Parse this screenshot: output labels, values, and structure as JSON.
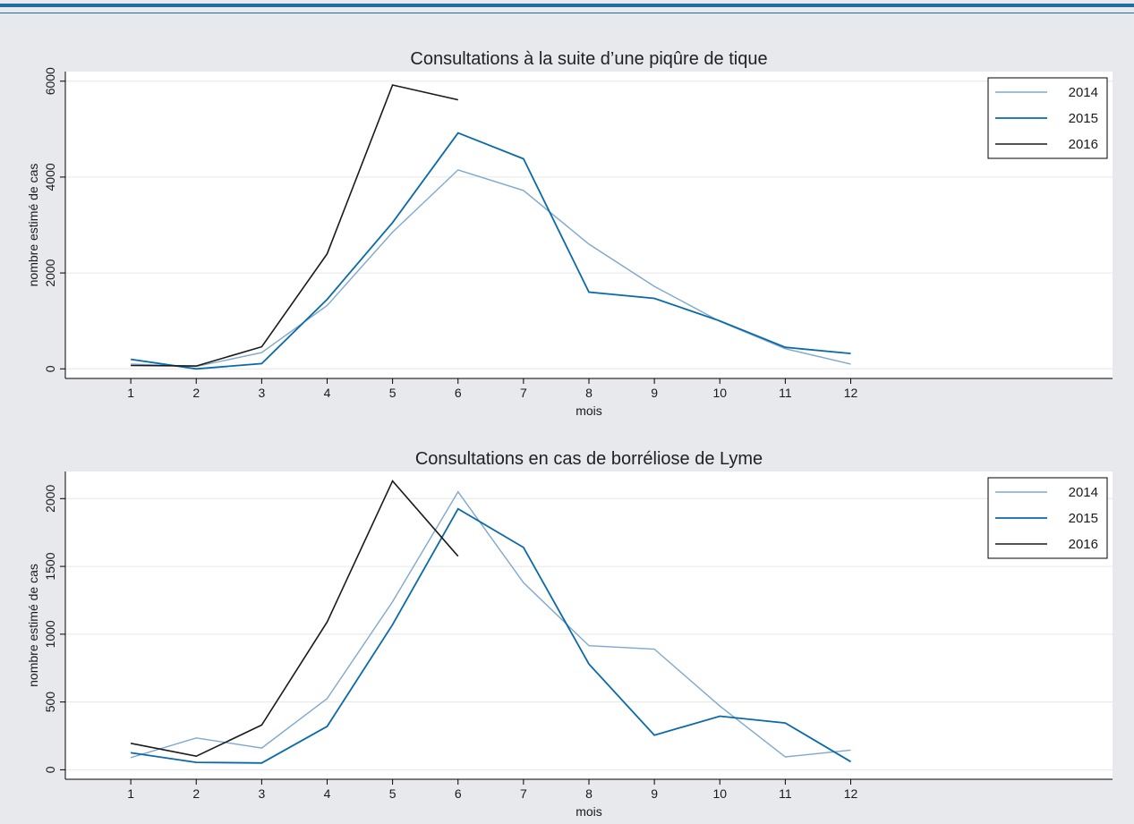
{
  "colors": {
    "s2014": "#7fa8cf",
    "s2015": "#0a6aa8",
    "s2016": "#1a1a1a",
    "grid": "#e6e6e6",
    "background": "#e8e9ec",
    "plot_bg": "#ffffff",
    "accent": "#1f6fa5"
  },
  "chart_data": [
    {
      "type": "line",
      "title": "Consultations à la suite d’une piqûre de tique",
      "xlabel": "mois",
      "ylabel": "nombre estimé de cas",
      "x_ticks": [
        "1",
        "2",
        "3",
        "4",
        "5",
        "6",
        "7",
        "8",
        "9",
        "10",
        "11",
        "12"
      ],
      "xlim": [
        0,
        16
      ],
      "ylim": [
        -200,
        6200
      ],
      "y_ticks": [
        0,
        2000,
        4000,
        6000
      ],
      "grid": true,
      "legend_position": "top-right",
      "series": [
        {
          "name": "2014",
          "x": [
            1,
            2,
            3,
            4,
            5,
            6,
            7,
            8,
            9,
            10,
            11,
            12
          ],
          "values": [
            100,
            50,
            340,
            1320,
            2850,
            4150,
            3720,
            2600,
            1720,
            990,
            420,
            100
          ]
        },
        {
          "name": "2015",
          "x": [
            1,
            2,
            3,
            4,
            5,
            6,
            7,
            8,
            9,
            10,
            11,
            12
          ],
          "values": [
            200,
            0,
            110,
            1450,
            3050,
            4920,
            4380,
            1600,
            1470,
            1000,
            450,
            320
          ]
        },
        {
          "name": "2016",
          "x": [
            1,
            2,
            3,
            4,
            5,
            6
          ],
          "values": [
            70,
            60,
            460,
            2400,
            5920,
            5610
          ]
        }
      ]
    },
    {
      "type": "line",
      "title": "Consultations en cas de borréliose de Lyme",
      "xlabel": "mois",
      "ylabel": "nombre estimé de cas",
      "x_ticks": [
        "1",
        "2",
        "3",
        "4",
        "5",
        "6",
        "7",
        "8",
        "9",
        "10",
        "11",
        "12"
      ],
      "xlim": [
        0,
        16
      ],
      "ylim": [
        -70,
        2200
      ],
      "y_ticks": [
        0,
        500,
        1000,
        1500,
        2000
      ],
      "grid": true,
      "legend_position": "top-right",
      "series": [
        {
          "name": "2014",
          "x": [
            1,
            2,
            3,
            4,
            5,
            6,
            7,
            8,
            9,
            10,
            11,
            12
          ],
          "values": [
            90,
            235,
            160,
            525,
            1240,
            2050,
            1380,
            915,
            890,
            470,
            95,
            145
          ]
        },
        {
          "name": "2015",
          "x": [
            1,
            2,
            3,
            4,
            5,
            6,
            7,
            8,
            9,
            10,
            11,
            12
          ],
          "values": [
            125,
            55,
            50,
            320,
            1070,
            1925,
            1640,
            780,
            255,
            395,
            345,
            60
          ]
        },
        {
          "name": "2016",
          "x": [
            1,
            2,
            3,
            4,
            5,
            6
          ],
          "values": [
            195,
            100,
            330,
            1090,
            2130,
            1575
          ]
        }
      ]
    }
  ]
}
